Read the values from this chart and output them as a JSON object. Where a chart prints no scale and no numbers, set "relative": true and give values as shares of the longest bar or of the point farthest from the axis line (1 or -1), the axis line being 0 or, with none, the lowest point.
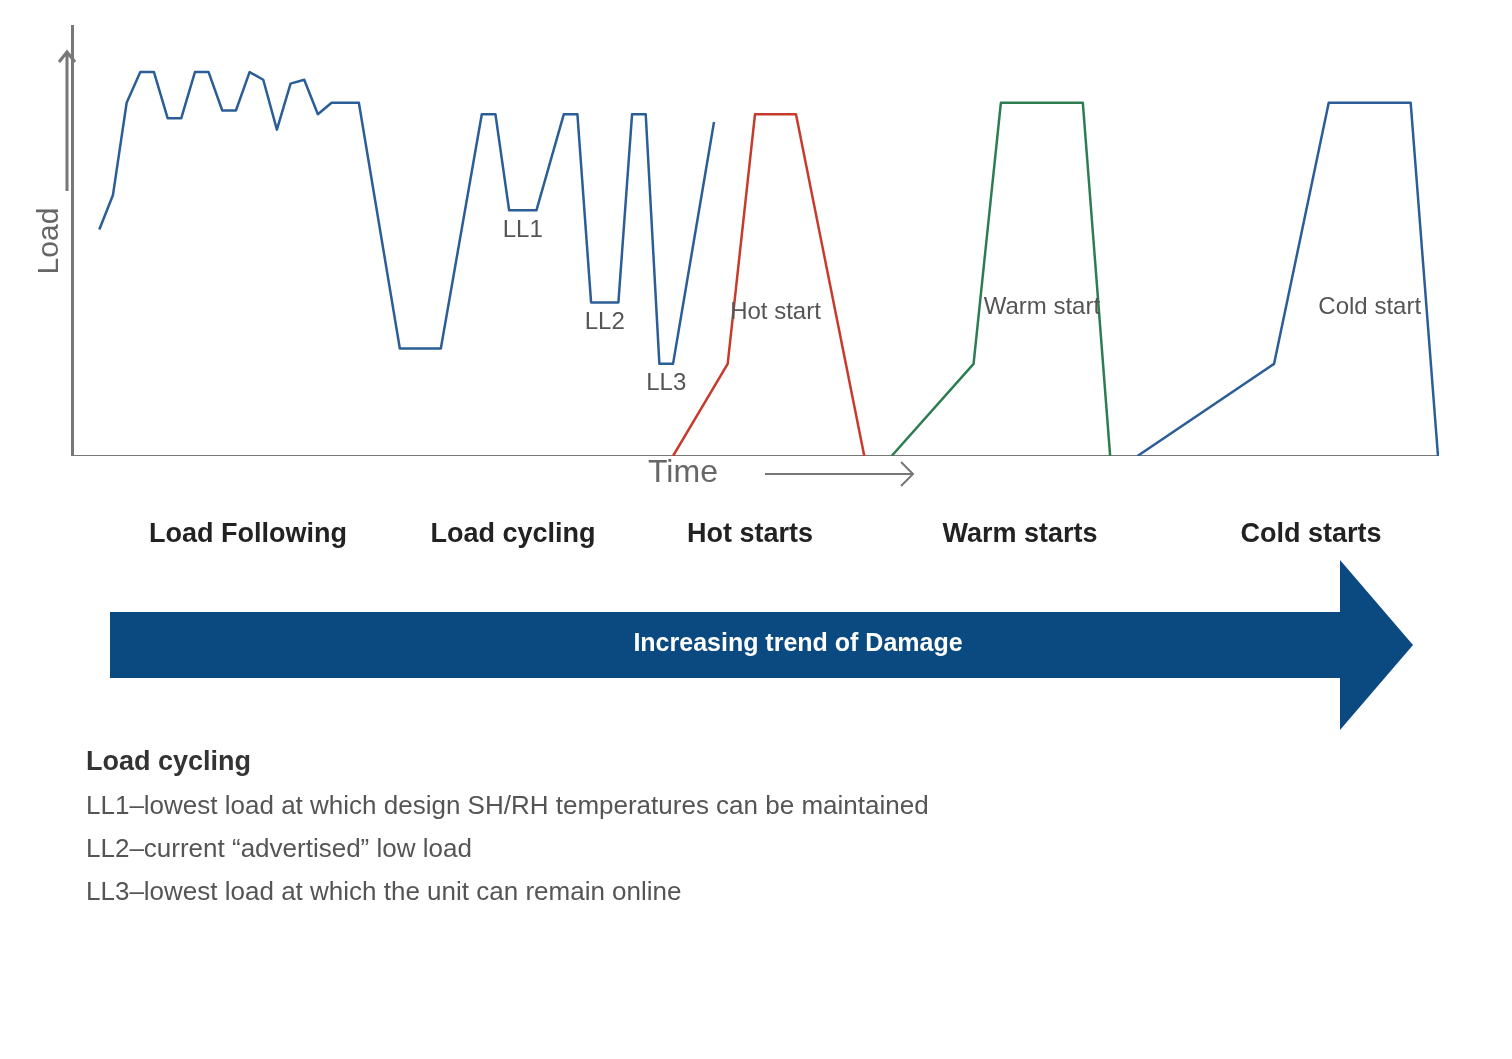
{
  "chart_data": {
    "type": "line",
    "relative": true,
    "ylabel": "Load",
    "xlabel": "Time",
    "grid": false,
    "legend": false,
    "marker": "none",
    "line_style": "solid",
    "categories": [
      null,
      null,
      null,
      null,
      null,
      null,
      null,
      null,
      null,
      null,
      null,
      null,
      null,
      null,
      null,
      null,
      null,
      null,
      null,
      null,
      null,
      null,
      null,
      null,
      null,
      null,
      null,
      null,
      null,
      null,
      null,
      null,
      null,
      null,
      null,
      null,
      null,
      null,
      null,
      null,
      null,
      null,
      null,
      null,
      null,
      null,
      null,
      null,
      null,
      null,
      null,
      null,
      null,
      null,
      null,
      null,
      null,
      null,
      null,
      null,
      null,
      null,
      null,
      null,
      null,
      null,
      null,
      null,
      null,
      null,
      null,
      null,
      null,
      null,
      null,
      null,
      null,
      null,
      null,
      null,
      null,
      null,
      null,
      null,
      null,
      null,
      null,
      null,
      null,
      null,
      null,
      null,
      null,
      null,
      null,
      null,
      null,
      null,
      null,
      null,
      null
    ],
    "series": [
      {
        "color": "#2b5d96",
        "values": [
          null,
          null,
          0.59,
          0.68,
          0.92,
          1.0,
          1.0,
          0.88,
          0.88,
          1.0,
          1.0,
          0.9,
          0.9,
          1.0,
          0.98,
          0.85,
          0.97,
          0.98,
          0.89,
          0.92,
          null,
          0.92,
          null,
          null,
          0.28,
          null,
          null,
          0.28,
          null,
          null,
          0.89,
          0.89,
          0.64,
          null,
          0.64,
          null,
          0.89,
          0.89,
          0.4,
          null,
          0.4,
          0.89,
          0.89,
          0.24,
          0.24,
          null,
          null,
          0.87,
          null,
          null,
          null,
          null,
          null,
          null,
          null,
          null,
          null,
          null,
          null,
          null,
          null,
          null,
          null,
          null,
          null,
          null,
          null,
          null,
          null,
          null,
          null,
          null,
          null,
          null,
          null,
          null,
          null,
          null,
          null,
          null,
          null,
          null,
          null,
          null,
          null,
          null,
          null,
          null,
          null,
          null,
          null,
          null,
          null,
          null,
          null,
          null,
          null,
          null,
          null,
          null,
          null
        ]
      },
      {
        "name": "Hot start",
        "color": "#c83a2c",
        "values": [
          null,
          null,
          null,
          null,
          null,
          null,
          null,
          null,
          null,
          null,
          null,
          null,
          null,
          null,
          null,
          null,
          null,
          null,
          null,
          null,
          null,
          null,
          null,
          null,
          null,
          null,
          null,
          null,
          null,
          null,
          null,
          null,
          null,
          null,
          null,
          null,
          null,
          null,
          null,
          null,
          null,
          null,
          null,
          null,
          0,
          null,
          null,
          null,
          0.24,
          null,
          0.89,
          null,
          null,
          0.89,
          null,
          null,
          null,
          null,
          0,
          null,
          null,
          null,
          null,
          null,
          null,
          null,
          null,
          null,
          null,
          null,
          null,
          null,
          null,
          null,
          null,
          null,
          null,
          null,
          null,
          null,
          null,
          null,
          null,
          null,
          null,
          null,
          null,
          null,
          null,
          null,
          null,
          null,
          null,
          null,
          null,
          null,
          null,
          null,
          null,
          null,
          null
        ]
      },
      {
        "name": "Warm start",
        "color": "#2e7d52",
        "values": [
          null,
          null,
          null,
          null,
          null,
          null,
          null,
          null,
          null,
          null,
          null,
          null,
          null,
          null,
          null,
          null,
          null,
          null,
          null,
          null,
          null,
          null,
          null,
          null,
          null,
          null,
          null,
          null,
          null,
          null,
          null,
          null,
          null,
          null,
          null,
          null,
          null,
          null,
          null,
          null,
          null,
          null,
          null,
          null,
          null,
          null,
          null,
          null,
          null,
          null,
          null,
          null,
          null,
          null,
          null,
          null,
          null,
          null,
          null,
          null,
          0,
          null,
          null,
          null,
          null,
          null,
          0.24,
          null,
          0.92,
          null,
          null,
          null,
          null,
          null,
          0.92,
          null,
          0,
          null,
          null,
          null,
          null,
          null,
          null,
          null,
          null,
          null,
          null,
          null,
          null,
          null,
          null,
          null,
          null,
          null,
          null,
          null,
          null,
          null,
          null,
          null,
          null
        ]
      },
      {
        "name": "Cold start",
        "color": "#2b5d96",
        "values": [
          null,
          null,
          null,
          null,
          null,
          null,
          null,
          null,
          null,
          null,
          null,
          null,
          null,
          null,
          null,
          null,
          null,
          null,
          null,
          null,
          null,
          null,
          null,
          null,
          null,
          null,
          null,
          null,
          null,
          null,
          null,
          null,
          null,
          null,
          null,
          null,
          null,
          null,
          null,
          null,
          null,
          null,
          null,
          null,
          null,
          null,
          null,
          null,
          null,
          null,
          null,
          null,
          null,
          null,
          null,
          null,
          null,
          null,
          null,
          null,
          null,
          null,
          null,
          null,
          null,
          null,
          null,
          null,
          null,
          null,
          null,
          null,
          null,
          null,
          null,
          null,
          null,
          null,
          0,
          null,
          null,
          null,
          null,
          null,
          null,
          null,
          null,
          null,
          0.24,
          null,
          null,
          null,
          0.92,
          null,
          null,
          null,
          null,
          null,
          0.92,
          null,
          0
        ]
      }
    ],
    "annotations": [
      {
        "text": "LL1",
        "y": 0.64
      },
      {
        "text": "LL2",
        "y": 0.4
      },
      {
        "text": "LL3",
        "y": 0.24
      },
      "Load Following",
      "Load cycling",
      "Hot starts",
      "Warm starts",
      "Cold starts",
      "Increasing trend of Damage",
      "Load cycling",
      "LL1–lowest load at which design SH/RH temperatures can be maintained",
      "LL2–current “advertised” low load",
      "LL3–lowest load at which the unit can remain online"
    ]
  }
}
